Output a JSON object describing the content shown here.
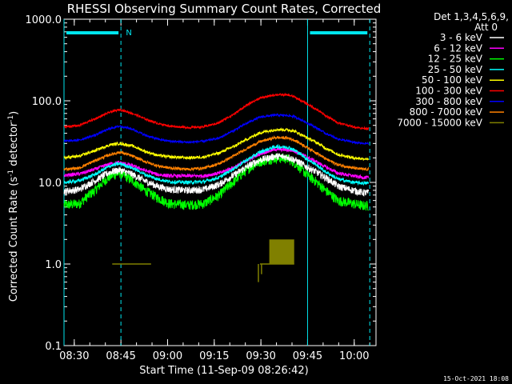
{
  "chart_data": {
    "type": "line",
    "title": "RHESSI Observing Summary Count Rates, Corrected",
    "xlabel": "Start Time (11-Sep-09 08:26:42)",
    "ylabel_main": "Corrected Count Rate (s",
    "ylabel_sup1": "-1",
    "ylabel_mid": " detector",
    "ylabel_sup2": "-1",
    "ylabel_end": ")",
    "yscale": "log",
    "ylim": [
      0.1,
      1000
    ],
    "xlim": [
      "08:26:42",
      "10:07:00"
    ],
    "x_ticks": [
      "08:30",
      "08:45",
      "09:00",
      "09:15",
      "09:30",
      "09:45",
      "10:00"
    ],
    "y_ticks": [
      "0.1",
      "1.0",
      "10.0",
      "100.0",
      "1000.0"
    ],
    "legend_header": [
      "Det 1,3,4,5,6,9,",
      "Att 0"
    ],
    "legend_position": "right",
    "timestamp": "15-Oct-2021 18:08",
    "flags": [
      {
        "label": "N",
        "start": "08:26:42",
        "end": "08:45:00",
        "color": "#00e5ee"
      },
      {
        "label": "",
        "start": "09:45:00",
        "end": "10:05:00",
        "color": "#00e5ee"
      }
    ],
    "markers": [
      {
        "time": "08:26:42",
        "style": "solid",
        "color": "#00e5ee"
      },
      {
        "time": "08:45:00",
        "style": "dashed",
        "color": "#00e5ee"
      },
      {
        "time": "09:45:00",
        "style": "solid",
        "color": "#00e5ee"
      },
      {
        "time": "10:05:00",
        "style": "dashed",
        "color": "#00e5ee"
      }
    ],
    "x_minutes": [
      0,
      5,
      10,
      15,
      18,
      22,
      26,
      30,
      34,
      40,
      45,
      50,
      55,
      60,
      63,
      68,
      72,
      74,
      78,
      84,
      88,
      93,
      96,
      98
    ],
    "series": [
      {
        "name": "3 - 6 keV",
        "color": "#ffffff",
        "noise": 0.1,
        "values": [
          7.8,
          8.2,
          10.5,
          13.5,
          14.2,
          12.5,
          10.4,
          9.0,
          8.2,
          8.0,
          8.2,
          9.5,
          12.5,
          16.5,
          18.8,
          21.0,
          20.5,
          19.0,
          15.5,
          11.5,
          9.0,
          8.0,
          7.5,
          7.5
        ]
      },
      {
        "name": "6 - 12 keV",
        "color": "#ff00ff",
        "noise": 0.05,
        "values": [
          12.2,
          12.7,
          14.5,
          17.0,
          17.5,
          16.0,
          14.0,
          12.5,
          12.0,
          12.0,
          12.0,
          13.0,
          15.5,
          19.5,
          22.5,
          25.5,
          25.0,
          24.5,
          20.5,
          15.5,
          13.0,
          12.0,
          11.5,
          11.5
        ]
      },
      {
        "name": "12 - 25 keV",
        "color": "#00ff00",
        "noise": 0.14,
        "values": [
          5.3,
          5.5,
          8.0,
          12.0,
          13.0,
          10.5,
          8.0,
          6.5,
          5.5,
          5.3,
          5.5,
          7.0,
          10.5,
          15.5,
          18.0,
          20.0,
          19.5,
          17.5,
          12.5,
          8.0,
          6.0,
          5.5,
          5.2,
          5.2
        ]
      },
      {
        "name": "25 - 50 keV",
        "color": "#00ffff",
        "noise": 0.05,
        "values": [
          10.0,
          10.5,
          12.5,
          16.0,
          17.0,
          15.0,
          12.5,
          11.0,
          10.2,
          10.0,
          10.2,
          11.5,
          15.0,
          20.0,
          23.5,
          27.5,
          27.0,
          25.0,
          19.5,
          13.5,
          11.0,
          10.0,
          9.8,
          9.8
        ]
      },
      {
        "name": "50 - 100 keV",
        "color": "#ffff00",
        "noise": 0.04,
        "values": [
          20.0,
          21.0,
          24.5,
          29.0,
          30.0,
          28.0,
          24.0,
          21.5,
          20.5,
          20.0,
          20.5,
          23.0,
          28.0,
          35.5,
          40.5,
          44.5,
          44.0,
          42.5,
          35.5,
          26.5,
          22.0,
          20.0,
          19.5,
          19.5
        ]
      },
      {
        "name": "100 - 300 keV",
        "color": "#ff0000",
        "noise": 0.03,
        "values": [
          48.0,
          50.0,
          60.0,
          73.0,
          78.0,
          70.0,
          60.0,
          53.0,
          49.0,
          47.0,
          48.0,
          54.0,
          70.0,
          94.0,
          108.0,
          119.0,
          118.0,
          112.0,
          92.0,
          66.0,
          54.0,
          48.0,
          46.0,
          46.0
        ]
      },
      {
        "name": "300 - 800 keV",
        "color": "#0000ff",
        "noise": 0.03,
        "values": [
          32.0,
          33.0,
          38.0,
          46.0,
          49.0,
          45.0,
          38.0,
          34.0,
          32.0,
          31.0,
          32.0,
          35.0,
          44.0,
          56.0,
          63.0,
          67.0,
          66.0,
          64.0,
          54.0,
          40.0,
          34.0,
          31.0,
          30.0,
          30.0
        ]
      },
      {
        "name": "800 - 7000 keV",
        "color": "#ff8000",
        "noise": 0.04,
        "values": [
          14.5,
          15.0,
          18.5,
          22.0,
          23.5,
          21.0,
          18.0,
          16.0,
          15.0,
          14.5,
          15.0,
          17.0,
          21.5,
          27.5,
          31.5,
          35.5,
          35.0,
          33.0,
          27.0,
          19.5,
          16.5,
          15.0,
          14.5,
          14.5
        ]
      },
      {
        "name": "7000 - 15000 keV",
        "color": "#808000",
        "noise": 0,
        "values": []
      }
    ],
    "olive_segments": [
      {
        "start": 15.5,
        "end": 28.0,
        "value": 1.0
      },
      {
        "start": 63.0,
        "end": 74.0,
        "value": 1.0
      }
    ],
    "olive_spikes": [
      {
        "time": 62.5,
        "low": 0.6,
        "high": 1.0
      },
      {
        "time": 63.5,
        "low": 0.75,
        "high": 1.0
      }
    ],
    "olive_block": {
      "start": 66.0,
      "end": 74.0,
      "low": 1.0,
      "high": 2.0
    }
  }
}
